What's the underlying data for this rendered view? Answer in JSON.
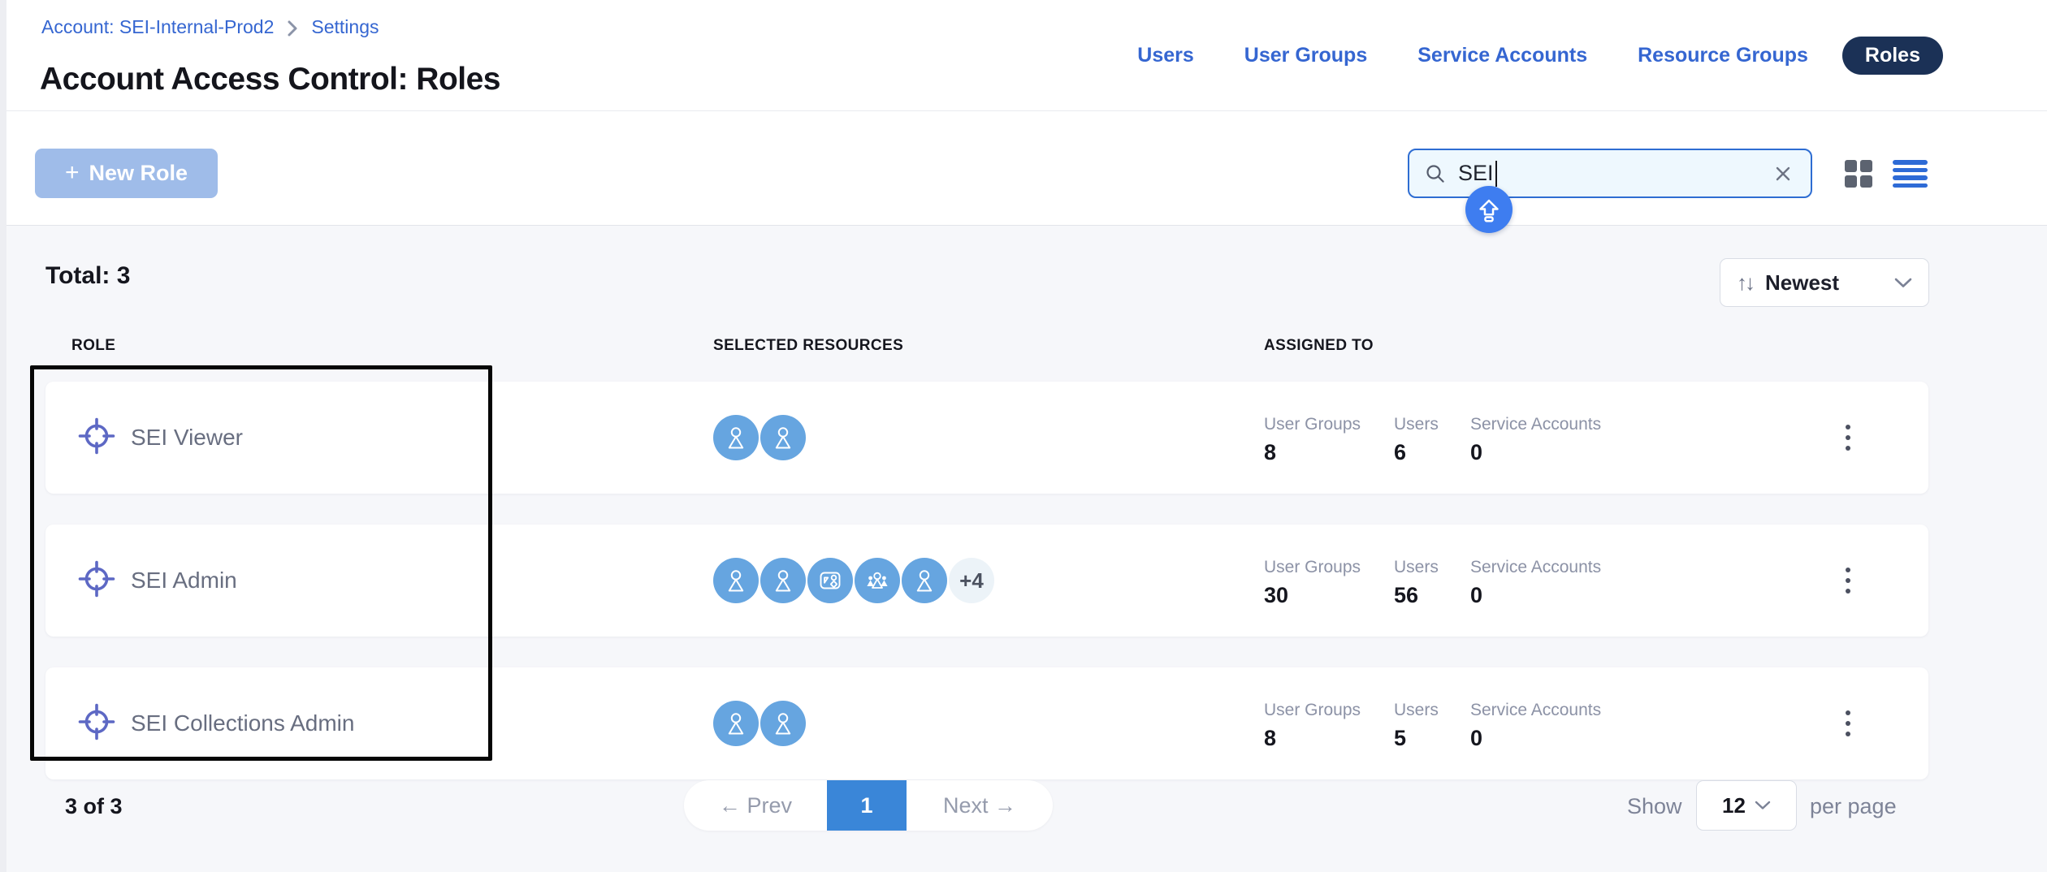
{
  "breadcrumb": {
    "account_link": "Account: SEI-Internal-Prod2",
    "settings_link": "Settings"
  },
  "page_title": "Account Access Control: Roles",
  "nav": {
    "items": [
      "Users",
      "User Groups",
      "Service Accounts",
      "Resource Groups"
    ],
    "active_tab": "Roles"
  },
  "toolbar": {
    "new_role_plus": "+",
    "new_role_label": "New Role",
    "search": {
      "value": "SEI"
    },
    "icons": [
      "search-icon",
      "clear-x-icon",
      "grid-view-icon",
      "list-view-icon",
      "shift-key-icon"
    ]
  },
  "list_header": {
    "total": "Total: 3",
    "sort_glyph": "↑↓",
    "sort_value": "Newest"
  },
  "table": {
    "columns": [
      "ROLE",
      "SELECTED RESOURCES",
      "ASSIGNED TO"
    ],
    "assigned_labels": {
      "user_groups": "User Groups",
      "users": "Users",
      "service_accounts": "Service Accounts"
    },
    "rows": [
      {
        "name": "SEI Viewer",
        "resources": [
          "user",
          "user"
        ],
        "extra": "",
        "user_groups": "8",
        "users": "6",
        "service_accounts": "0"
      },
      {
        "name": "SEI Admin",
        "resources": [
          "user",
          "user",
          "dashboard",
          "group",
          "user"
        ],
        "extra": "+4",
        "user_groups": "30",
        "users": "56",
        "service_accounts": "0"
      },
      {
        "name": "SEI Collections Admin",
        "resources": [
          "user",
          "user"
        ],
        "extra": "",
        "user_groups": "8",
        "users": "5",
        "service_accounts": "0"
      }
    ]
  },
  "pagination": {
    "count": "3 of 3",
    "prev_label": "← Prev",
    "current_page": "1",
    "next_label": "Next →",
    "show_label": "Show",
    "page_size": "12",
    "per_page_label": "per page"
  },
  "colors": {
    "link_blue": "#3566d1",
    "active_pill_navy": "#1b3156",
    "new_role_bg": "#9fbce9",
    "search_border": "#2e6dd2",
    "avatar_blue": "#66a5e0",
    "role_icon_indigo": "#5d68c4",
    "active_page_blue": "#3a86d8",
    "overlay_badge_blue": "#3e7df0",
    "content_bg": "#f6f7fa"
  }
}
